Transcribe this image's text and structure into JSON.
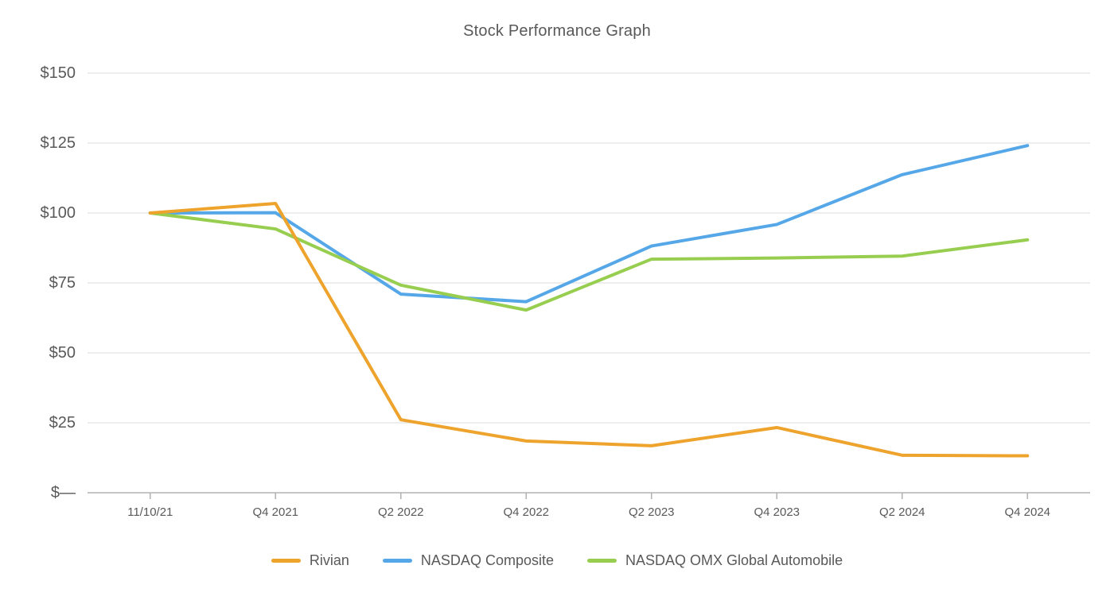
{
  "title": "Stock Performance Graph",
  "colors": {
    "text": "#595959",
    "grid": "#E7E7E7",
    "axis": "#B3B3B3",
    "background": "#FFFFFF"
  },
  "chart_data": {
    "type": "line",
    "title": "Stock Performance Graph",
    "categories": [
      "11/10/21",
      "Q4 2021",
      "Q2 2022",
      "Q4 2022",
      "Q2 2023",
      "Q4 2023",
      "Q2 2024",
      "Q4 2024"
    ],
    "series": [
      {
        "name": "Rivian",
        "color": "#EDA32C",
        "values": [
          100,
          103.4,
          26.1,
          18.5,
          16.8,
          23.3,
          13.4,
          13.2
        ]
      },
      {
        "name": "NASDAQ Composite",
        "color": "#55A7E8",
        "values": [
          100,
          100.1,
          71.0,
          68.3,
          88.2,
          95.9,
          113.7,
          124.1
        ]
      },
      {
        "name": "NASDAQ OMX Global Automobile",
        "color": "#98CE50",
        "values": [
          100,
          94.3,
          74.2,
          65.3,
          83.5,
          83.9,
          84.6,
          90.4
        ]
      }
    ],
    "y_axis": {
      "ylim": [
        0,
        150
      ],
      "ticks": [
        {
          "value": 150,
          "label": "$150"
        },
        {
          "value": 125,
          "label": "$125"
        },
        {
          "value": 100,
          "label": "$100"
        },
        {
          "value": 75,
          "label": "$75"
        },
        {
          "value": 50,
          "label": "$50"
        },
        {
          "value": 25,
          "label": "$25"
        },
        {
          "value": 0,
          "label": "$—"
        }
      ]
    },
    "grid": true,
    "legend_position": "bottom"
  }
}
